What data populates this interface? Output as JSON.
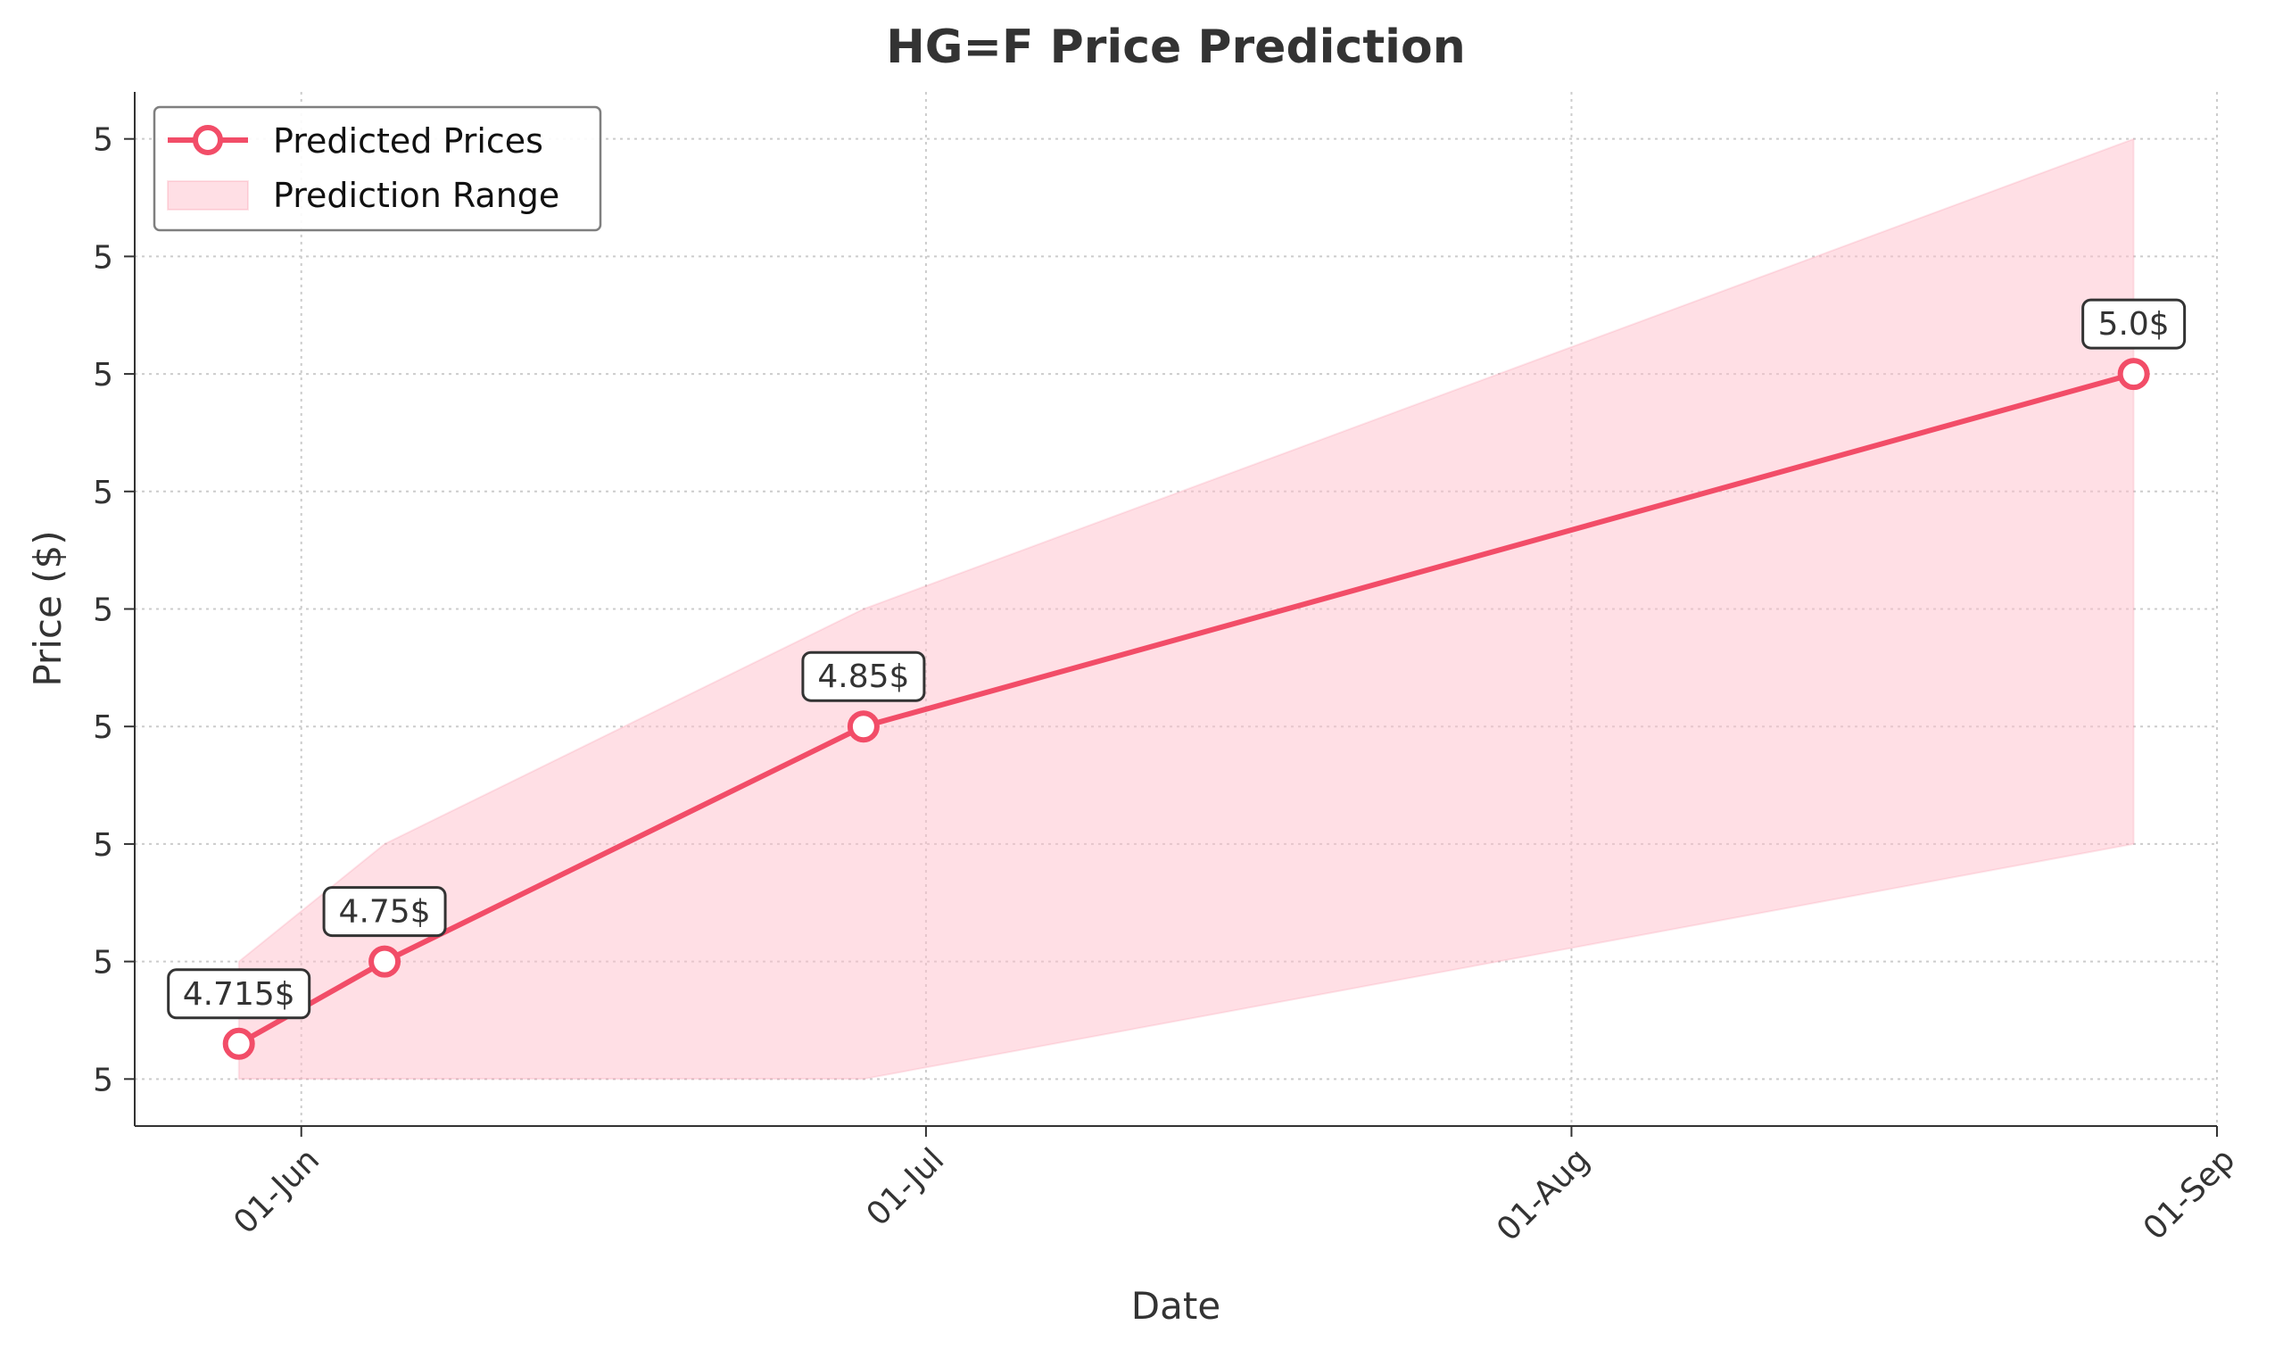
{
  "chart_data": {
    "type": "line",
    "title": "HG=F Price Prediction",
    "xlabel": "Date",
    "ylabel": "Price ($)",
    "x_axis": {
      "type": "date",
      "range": [
        "2024-05-24",
        "2024-09-01"
      ],
      "ticks": [
        {
          "date": "2024-06-01",
          "label": "01-Jun"
        },
        {
          "date": "2024-07-01",
          "label": "01-Jul"
        },
        {
          "date": "2024-08-01",
          "label": "01-Aug"
        },
        {
          "date": "2024-09-01",
          "label": "01-Sep"
        }
      ]
    },
    "y_axis": {
      "range": [
        4.68,
        5.12
      ],
      "ticks": [
        {
          "value": 4.7,
          "label": "5"
        },
        {
          "value": 4.75,
          "label": "5"
        },
        {
          "value": 4.8,
          "label": "5"
        },
        {
          "value": 4.85,
          "label": "5"
        },
        {
          "value": 4.9,
          "label": "5"
        },
        {
          "value": 4.95,
          "label": "5"
        },
        {
          "value": 5.0,
          "label": "5"
        },
        {
          "value": 5.05,
          "label": "5"
        },
        {
          "value": 5.1,
          "label": "5"
        }
      ]
    },
    "grid": true,
    "legend": {
      "placement": "top-left",
      "entries": [
        {
          "label": "Predicted Prices",
          "kind": "line-marker"
        },
        {
          "label": "Prediction Range",
          "kind": "area"
        }
      ]
    },
    "series": [
      {
        "name": "Predicted Prices",
        "color": "#f24d68",
        "points": [
          {
            "date": "2024-05-29",
            "value": 4.715,
            "label": "4.715$"
          },
          {
            "date": "2024-06-05",
            "value": 4.75,
            "label": "4.75$"
          },
          {
            "date": "2024-06-28",
            "value": 4.85,
            "label": "4.85$"
          },
          {
            "date": "2024-08-28",
            "value": 5.0,
            "label": "5.0$"
          }
        ]
      }
    ],
    "range_band": {
      "name": "Prediction Range",
      "color": "#ffc0cb",
      "points": [
        {
          "date": "2024-05-29",
          "low": 4.7,
          "high": 4.75
        },
        {
          "date": "2024-06-05",
          "low": 4.7,
          "high": 4.8
        },
        {
          "date": "2024-06-28",
          "low": 4.7,
          "high": 4.9
        },
        {
          "date": "2024-08-28",
          "low": 4.8,
          "high": 5.1
        }
      ]
    }
  }
}
